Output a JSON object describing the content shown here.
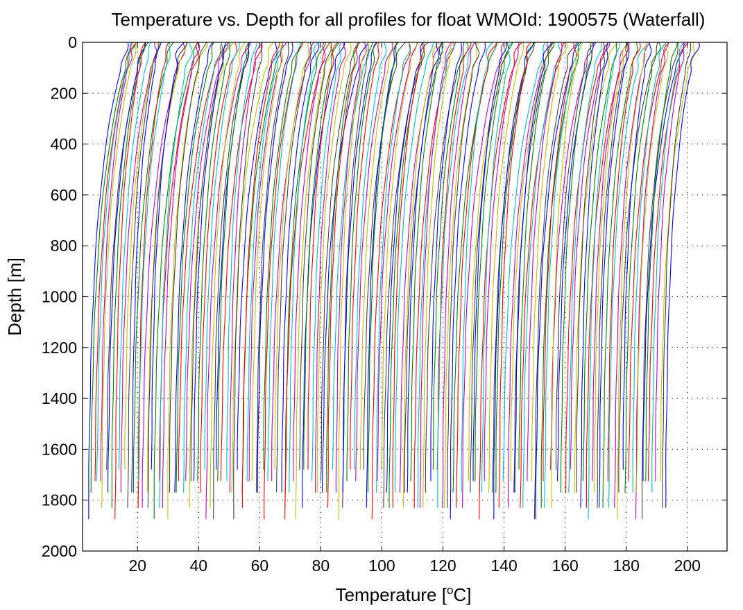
{
  "chart_data": {
    "type": "line",
    "title": "Temperature vs. Depth for all profiles for float WMOId: 1900575 (Waterfall)",
    "xlabel_prefix": "Temperature [",
    "xlabel_sup": "o",
    "xlabel_suffix": "C]",
    "ylabel": "Depth [m]",
    "xlim": [
      2,
      213
    ],
    "ylim": [
      2000,
      0
    ],
    "y_reversed": true,
    "xticks": [
      20,
      40,
      60,
      80,
      100,
      120,
      140,
      160,
      180,
      200
    ],
    "xtick_labels": [
      "20",
      "40",
      "60",
      "80",
      "100",
      "120",
      "140",
      "160",
      "180",
      "200"
    ],
    "yticks": [
      0,
      200,
      400,
      600,
      800,
      1000,
      1200,
      1400,
      1600,
      1800,
      2000
    ],
    "ytick_labels": [
      "0",
      "200",
      "400",
      "600",
      "800",
      "1000",
      "1200",
      "1400",
      "1600",
      "1800",
      "2000"
    ],
    "grid": "dotted",
    "legend": "none",
    "waterfall": {
      "profile_count": 190,
      "offset_per_profile": 1,
      "deep_temp_range": [
        2.8,
        3.9
      ],
      "surface_temp_range": [
        13,
        18
      ],
      "max_depth_range": [
        1680,
        1880
      ]
    },
    "color_cycle": [
      "#0000ff",
      "#008000",
      "#ff0000",
      "#00bfbf",
      "#bf00bf",
      "#bfbf00",
      "#404040"
    ]
  }
}
